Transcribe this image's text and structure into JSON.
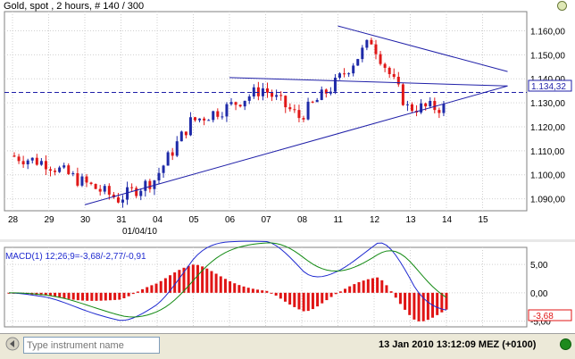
{
  "header": {
    "title": "Gold, spot , 2 hours, # 140 / 300"
  },
  "colors": {
    "up_candle": "#1e2aa8",
    "down_candle": "#e01818",
    "trendline": "#1f1fa8",
    "grid": "#d0d0d0",
    "macd_line": "#1f2ad0",
    "signal_line": "#138a13",
    "histogram": "#e01414",
    "status_green": "#1d8a1d"
  },
  "icons": [
    "back-arrow-icon",
    "status-indicator-icon"
  ],
  "main_chart": {
    "current_price_label": "1.134,32",
    "y_tick_labels": [
      "1.160,00",
      "1.150,00",
      "1.140,00",
      "1.130,00",
      "1.120,00",
      "1.110,00",
      "1.100,00",
      "1.090,00"
    ],
    "x_tick_labels": [
      "28",
      "29",
      "30",
      "31",
      "04",
      "05",
      "06",
      "07",
      "08",
      "11",
      "12",
      "13",
      "14",
      "15"
    ],
    "date_label": "01/04/10"
  },
  "macd_panel": {
    "label": "MACD(1) 12;26;9=-3,68/-2,77/-0,91",
    "y_tick_labels": [
      "5,00",
      "0,00",
      "-5,00"
    ],
    "current_value_label": "-3,68"
  },
  "footer": {
    "instrument_placeholder": "Type instrument name",
    "datetime": "13 Jan 2010 13:12:09  MEZ (+0100)"
  },
  "chart_data": [
    {
      "type": "line",
      "title": "Gold, spot , 2 hours, # 140 / 300",
      "x": [
        "28",
        "29",
        "30",
        "31",
        "04",
        "05",
        "06",
        "07",
        "08",
        "11",
        "12",
        "13",
        "14",
        "15"
      ],
      "ylim": [
        1085,
        1168
      ],
      "series": [
        {
          "values": [
            1108,
            1105,
            1097,
            1090,
            1098,
            1122,
            1128,
            1136,
            1124,
            1138,
            1156,
            1128,
            null,
            null
          ]
        }
      ],
      "trendlines": [
        {
          "from": [
            "30",
            1087.5
          ],
          "to": [
            "15",
            1137
          ]
        },
        {
          "from": [
            "06",
            1140.5
          ],
          "to": [
            "15",
            1137
          ]
        },
        {
          "from": [
            "11",
            1162
          ],
          "to": [
            "15",
            1143
          ]
        }
      ],
      "reference_line": 1134.32,
      "grid": true
    },
    {
      "type": "line",
      "title": "MACD(1) 12;26;9=-3,68/-2,77/-0,91",
      "ylim": [
        -6,
        8
      ],
      "grid": true
    }
  ]
}
